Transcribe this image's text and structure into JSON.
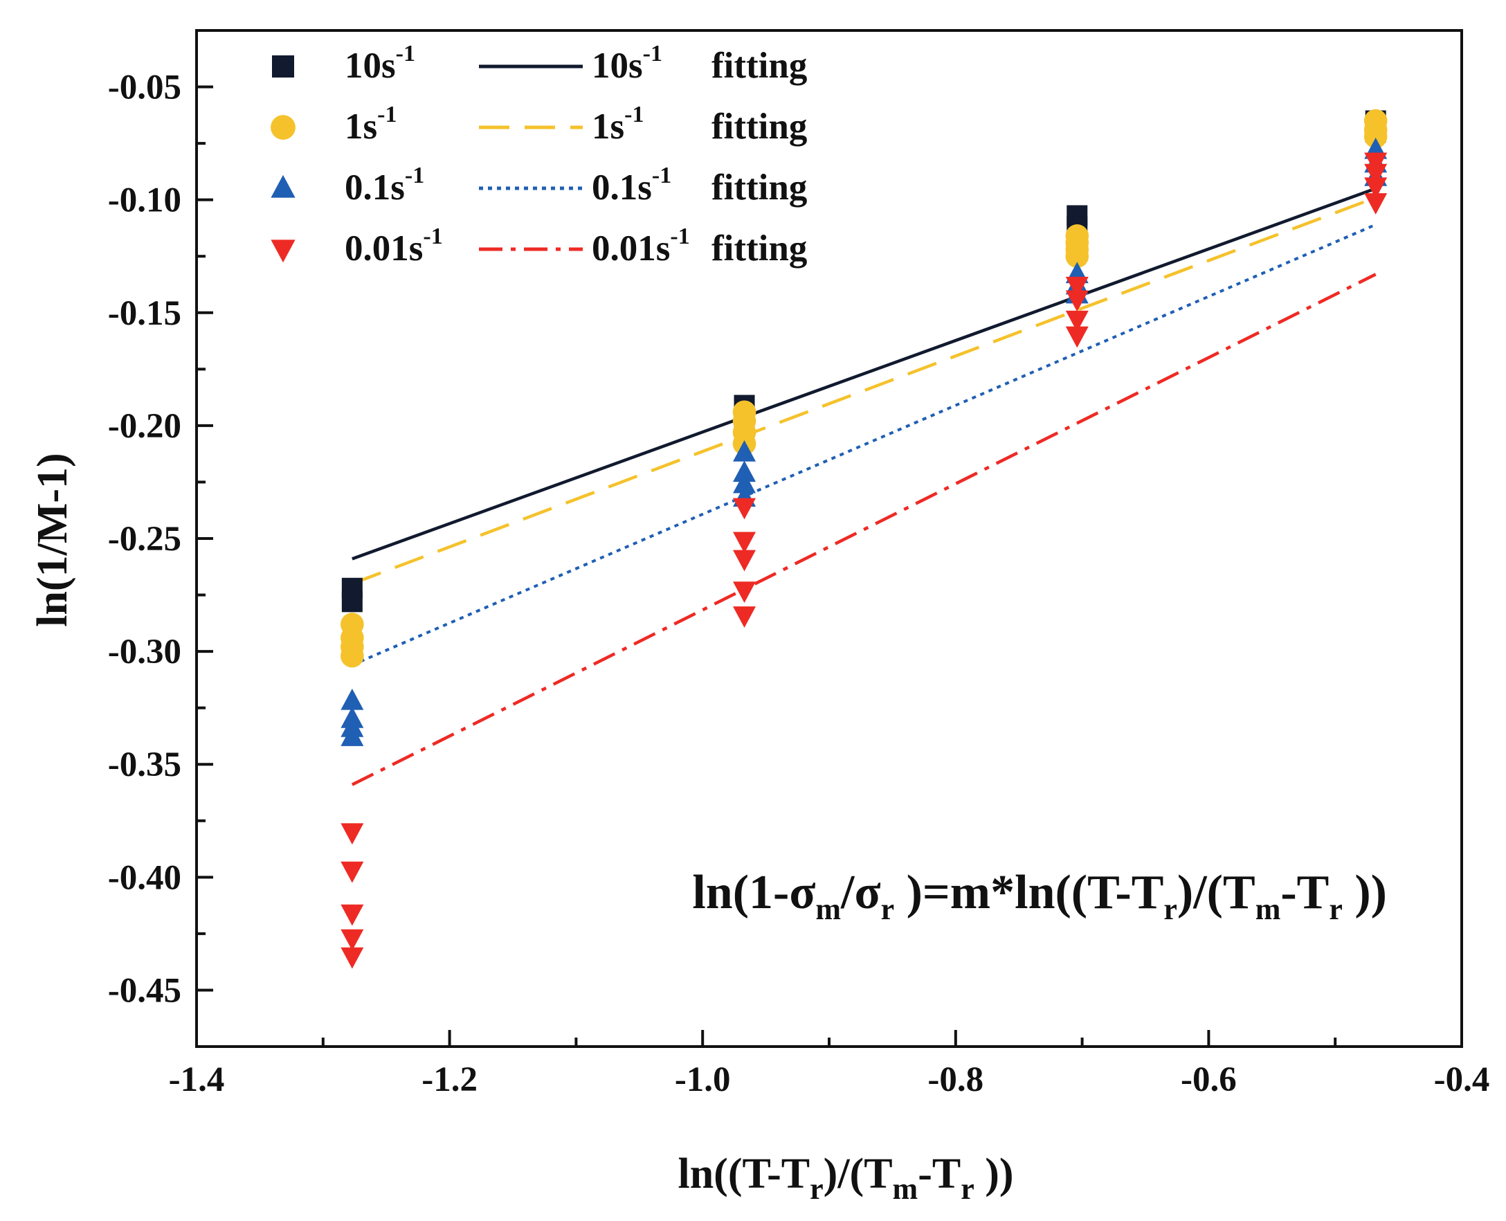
{
  "chart_data": {
    "type": "scatter",
    "xlabel": "ln((T-Tr)/(Tm-Tr ))",
    "ylabel": "ln(1/M-1)",
    "xlim": [
      -1.4,
      -0.4
    ],
    "ylim": [
      -0.475,
      -0.025
    ],
    "x_ticks": [
      "-1.4",
      "-1.2",
      "-1.0",
      "-0.8",
      "-0.6",
      "-0.4"
    ],
    "x_tick_values": [
      -1.4,
      -1.2,
      -1.0,
      -0.8,
      -0.6,
      -0.4
    ],
    "y_ticks": [
      "-0.05",
      "-0.10",
      "-0.15",
      "-0.20",
      "-0.25",
      "-0.30",
      "-0.35",
      "-0.40",
      "-0.45"
    ],
    "y_tick_values": [
      -0.05,
      -0.1,
      -0.15,
      -0.2,
      -0.25,
      -0.3,
      -0.35,
      -0.4,
      -0.45
    ],
    "grid": false,
    "legend_placement": "top-left",
    "equation_label": "ln(1-σm/σr )=m*ln((T-Tr)/(Tm-Tr ))",
    "series": [
      {
        "name": "10s-1",
        "marker": "square",
        "color": "#111a2e",
        "points": [
          {
            "x": -1.277,
            "y": -0.272
          },
          {
            "x": -1.277,
            "y": -0.278
          },
          {
            "x": -0.967,
            "y": -0.191
          },
          {
            "x": -0.967,
            "y": -0.196
          },
          {
            "x": -0.704,
            "y": -0.107
          },
          {
            "x": -0.704,
            "y": -0.112
          },
          {
            "x": -0.468,
            "y": -0.065
          },
          {
            "x": -0.468,
            "y": -0.07
          }
        ],
        "fit": {
          "label": "10s-1 fitting",
          "style": "solid",
          "color": "#111a2e",
          "x": [
            -1.277,
            -0.468
          ],
          "y": [
            -0.259,
            -0.095
          ]
        }
      },
      {
        "name": "1s-1",
        "marker": "circle",
        "color": "#f5c22c",
        "points": [
          {
            "x": -1.277,
            "y": -0.288
          },
          {
            "x": -1.277,
            "y": -0.294
          },
          {
            "x": -1.277,
            "y": -0.298
          },
          {
            "x": -1.277,
            "y": -0.302
          },
          {
            "x": -0.967,
            "y": -0.194
          },
          {
            "x": -0.967,
            "y": -0.198
          },
          {
            "x": -0.967,
            "y": -0.203
          },
          {
            "x": -0.967,
            "y": -0.208
          },
          {
            "x": -0.704,
            "y": -0.116
          },
          {
            "x": -0.704,
            "y": -0.119
          },
          {
            "x": -0.704,
            "y": -0.122
          },
          {
            "x": -0.704,
            "y": -0.125
          },
          {
            "x": -0.468,
            "y": -0.065
          },
          {
            "x": -0.468,
            "y": -0.069
          },
          {
            "x": -0.468,
            "y": -0.072
          }
        ],
        "fit": {
          "label": "1s-1 fitting",
          "style": "dashed",
          "color": "#f5c22c",
          "x": [
            -1.277,
            -0.468
          ],
          "y": [
            -0.27,
            -0.099
          ]
        }
      },
      {
        "name": "0.1s-1",
        "marker": "triangle-up",
        "color": "#1f5fb4",
        "points": [
          {
            "x": -1.277,
            "y": -0.322
          },
          {
            "x": -1.277,
            "y": -0.33
          },
          {
            "x": -1.277,
            "y": -0.334
          },
          {
            "x": -1.277,
            "y": -0.338
          },
          {
            "x": -0.967,
            "y": -0.212
          },
          {
            "x": -0.967,
            "y": -0.221
          },
          {
            "x": -0.967,
            "y": -0.226
          },
          {
            "x": -0.967,
            "y": -0.232
          },
          {
            "x": -0.704,
            "y": -0.133
          },
          {
            "x": -0.704,
            "y": -0.138
          },
          {
            "x": -0.704,
            "y": -0.142
          },
          {
            "x": -0.468,
            "y": -0.078
          },
          {
            "x": -0.468,
            "y": -0.084
          },
          {
            "x": -0.468,
            "y": -0.09
          }
        ],
        "fit": {
          "label": "0.1s-1 fitting",
          "style": "dotted",
          "color": "#1f5fb4",
          "x": [
            -1.277,
            -0.468
          ],
          "y": [
            -0.306,
            -0.111
          ]
        }
      },
      {
        "name": "0.01s-1",
        "marker": "triangle-down",
        "color": "#ee2a24",
        "points": [
          {
            "x": -1.277,
            "y": -0.38
          },
          {
            "x": -1.277,
            "y": -0.397
          },
          {
            "x": -1.277,
            "y": -0.416
          },
          {
            "x": -1.277,
            "y": -0.427
          },
          {
            "x": -1.277,
            "y": -0.435
          },
          {
            "x": -0.967,
            "y": -0.236
          },
          {
            "x": -0.967,
            "y": -0.251
          },
          {
            "x": -0.967,
            "y": -0.259
          },
          {
            "x": -0.967,
            "y": -0.273
          },
          {
            "x": -0.967,
            "y": -0.284
          },
          {
            "x": -0.704,
            "y": -0.138
          },
          {
            "x": -0.704,
            "y": -0.144
          },
          {
            "x": -0.704,
            "y": -0.153
          },
          {
            "x": -0.704,
            "y": -0.16
          },
          {
            "x": -0.468,
            "y": -0.083
          },
          {
            "x": -0.468,
            "y": -0.088
          },
          {
            "x": -0.468,
            "y": -0.094
          },
          {
            "x": -0.468,
            "y": -0.101
          }
        ],
        "fit": {
          "label": "0.01s-1fitting",
          "style": "dashdot",
          "color": "#ee2a24",
          "x": [
            -1.277,
            -0.468
          ],
          "y": [
            -0.359,
            -0.133
          ]
        }
      }
    ]
  }
}
